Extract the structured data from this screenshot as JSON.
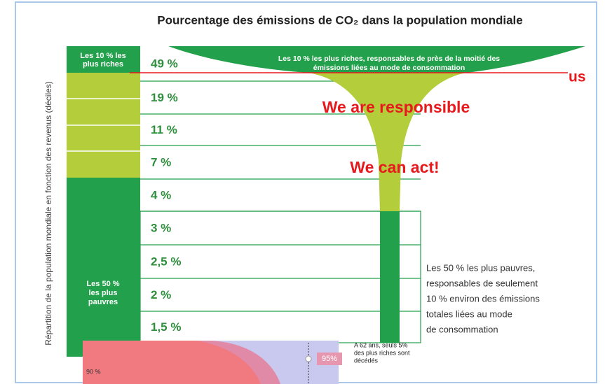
{
  "title": "Pourcentage des émissions de CO₂ dans la population mondiale",
  "y_axis_label": "Répartition de la population mondiale en fonction des revenus (déciles)",
  "groups": {
    "rich": [
      "Les 10 % les",
      "plus riches"
    ],
    "poor": [
      "Les 50 %",
      "les plus",
      "pauvres"
    ]
  },
  "deciles": [
    "49 %",
    "19 %",
    "11 %",
    "7 %",
    "4 %",
    "3 %",
    "2,5 %",
    "2 %",
    "1,5 %"
  ],
  "top_annotation": [
    "Les 10 % les plus riches, responsables de près de la moitié des",
    "émissions liées au mode de consommation"
  ],
  "bottom_annotation": [
    "Les 50 % les plus pauvres,",
    "responsables de seulement",
    "10 % environ des émissions",
    "totales liées au mode",
    "de consommation"
  ],
  "overlays": {
    "us": "us",
    "responsible": "We are responsible",
    "act": "We can act!"
  },
  "inset": {
    "percent": "95%",
    "note": [
      "A 62 ans, seuls 5%",
      "des plus riches sont",
      "décédés"
    ],
    "axis_label": "90 %"
  }
}
